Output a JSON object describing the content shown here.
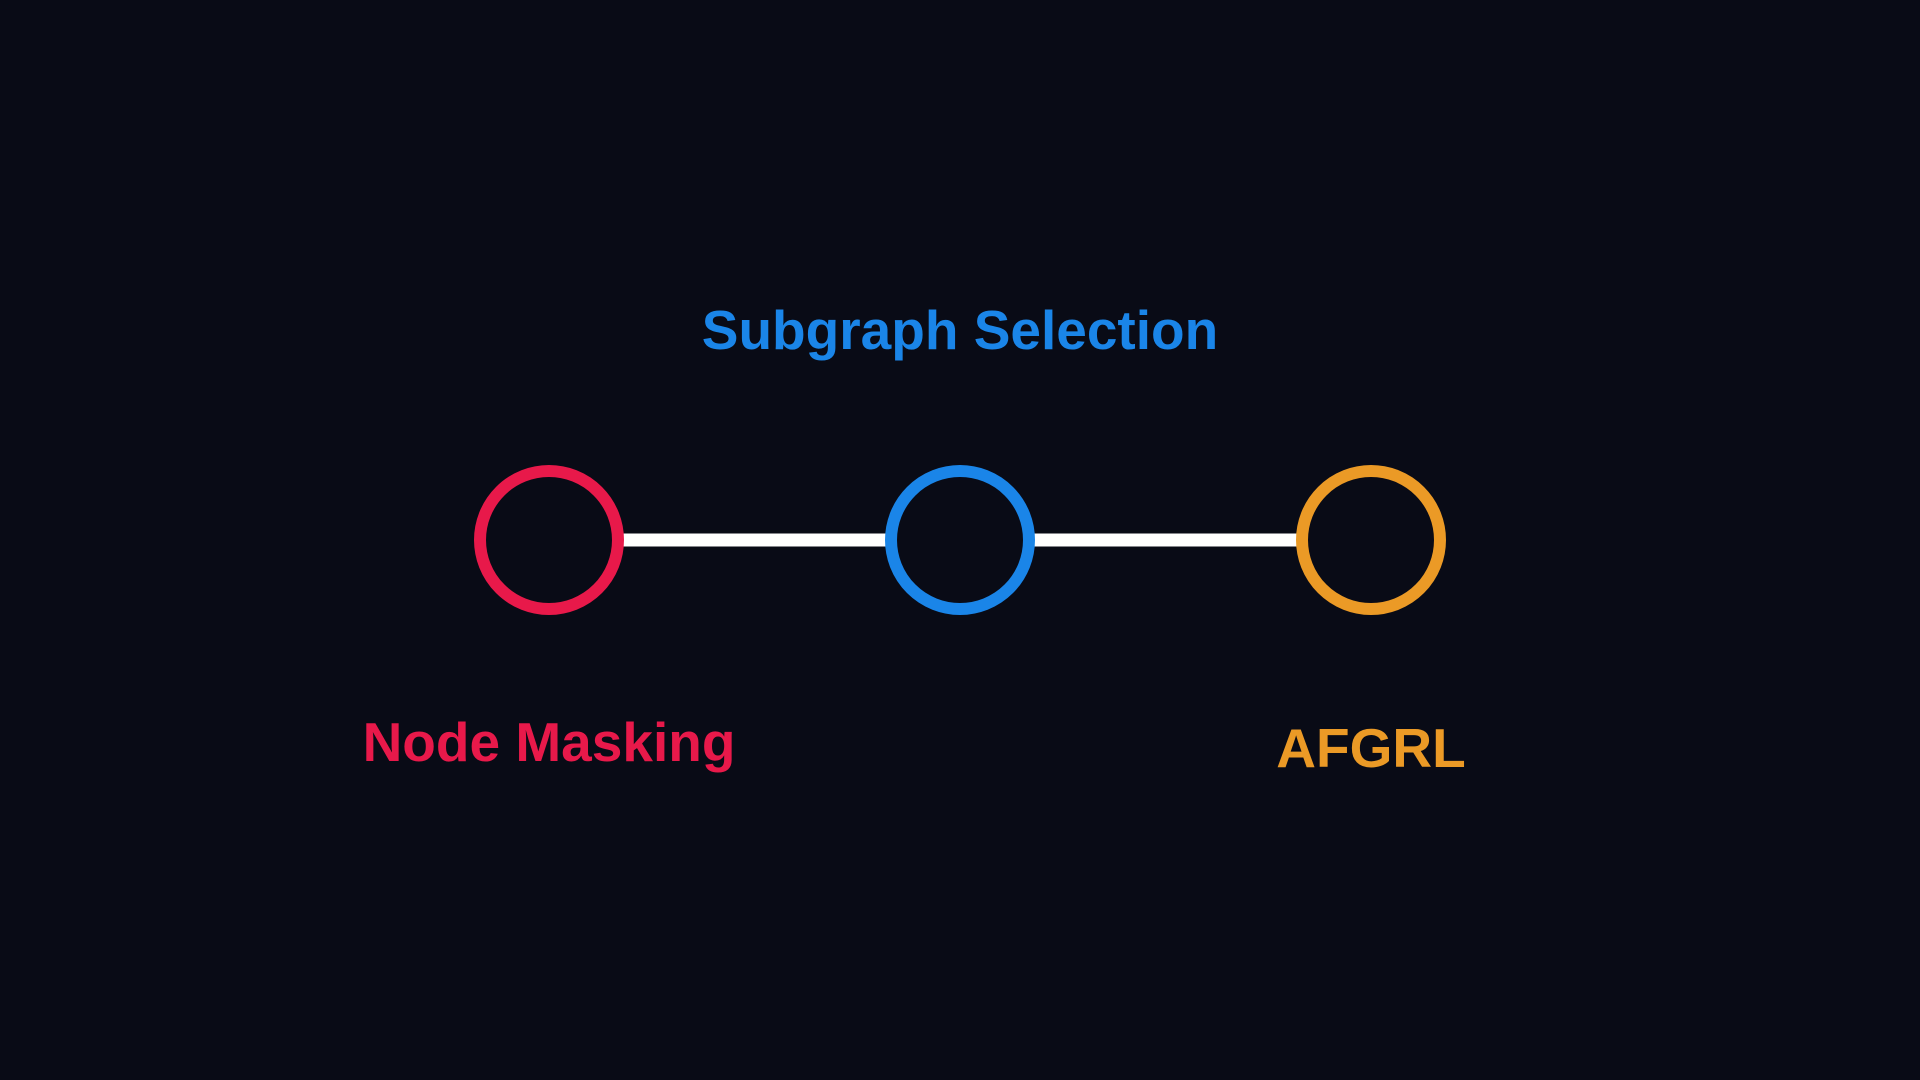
{
  "colors": {
    "background": "#090b16",
    "edge": "#ffffff",
    "left": "#e8194a",
    "center": "#1a85e8",
    "right": "#eb9a26"
  },
  "nodes": [
    {
      "id": "left-node",
      "color_key": "left"
    },
    {
      "id": "center-node",
      "color_key": "center"
    },
    {
      "id": "right-node",
      "color_key": "right"
    }
  ],
  "edges": [
    {
      "from": "left-node",
      "to": "center-node"
    },
    {
      "from": "center-node",
      "to": "right-node"
    }
  ],
  "labels": {
    "top": "Subgraph Selection",
    "left": "Node Masking",
    "right": "AFGRL"
  }
}
